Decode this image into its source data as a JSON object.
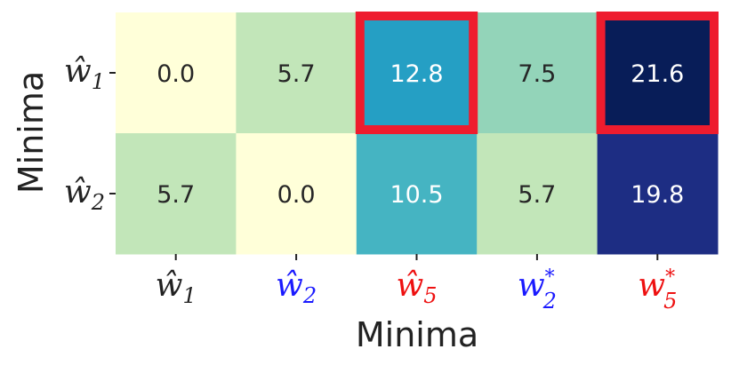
{
  "chart_data": {
    "type": "heatmap",
    "xlabel": "Minima",
    "ylabel": "Minima",
    "x_categories": [
      {
        "label": "ŵ",
        "sub": "1",
        "sup": "",
        "color": "#222222"
      },
      {
        "label": "ŵ",
        "sub": "2",
        "sup": "",
        "color": "#1a1aff"
      },
      {
        "label": "ŵ",
        "sub": "5",
        "sup": "",
        "color": "#ee1111"
      },
      {
        "label": "w",
        "sub": "2",
        "sup": "*",
        "color": "#1a1aff"
      },
      {
        "label": "w",
        "sub": "5",
        "sup": "*",
        "color": "#ee1111"
      }
    ],
    "y_categories": [
      {
        "label": "ŵ",
        "sub": "1",
        "sup": "",
        "color": "#222222"
      },
      {
        "label": "ŵ",
        "sub": "2",
        "sup": "",
        "color": "#222222"
      }
    ],
    "values": [
      [
        0.0,
        5.7,
        12.8,
        7.5,
        21.6
      ],
      [
        5.7,
        0.0,
        10.5,
        5.7,
        19.8
      ]
    ],
    "value_labels": [
      [
        "0.0",
        "5.7",
        "12.8",
        "7.5",
        "21.6"
      ],
      [
        "5.7",
        "0.0",
        "10.5",
        "5.7",
        "19.8"
      ]
    ],
    "cell_colors": [
      [
        "#ffffd9",
        "#c2e6b9",
        "#259fc4",
        "#93d4b9",
        "#081d58"
      ],
      [
        "#c2e6b9",
        "#ffffd9",
        "#45b4c2",
        "#c2e6b9",
        "#1d2d83"
      ]
    ],
    "highlighted_cells": [
      [
        0,
        2
      ],
      [
        0,
        4
      ]
    ],
    "highlight_color": "#ee1c2e",
    "colormap": "YlGnBu",
    "grid": false
  }
}
